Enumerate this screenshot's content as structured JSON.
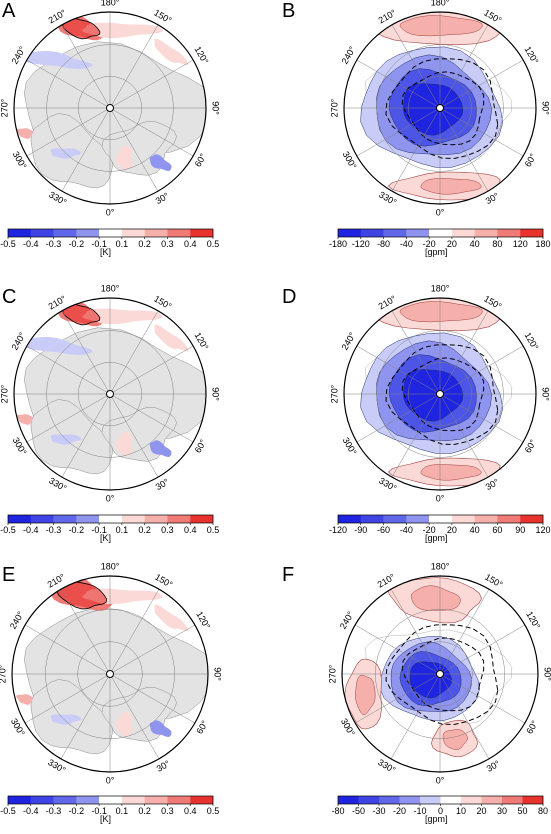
{
  "panels": [
    {
      "letter": "A",
      "type": "temperature",
      "unit": "[K]",
      "ticks": [
        "-0.5",
        "-0.4",
        "-0.3",
        "-0.2",
        "-0.1",
        "0.1",
        "0.2",
        "0.3",
        "0.4",
        "0.5"
      ]
    },
    {
      "letter": "B",
      "type": "geopotential",
      "unit": "[gpm]",
      "ticks": [
        "-180",
        "-120",
        "-80",
        "-40",
        "-20",
        "20",
        "40",
        "80",
        "120",
        "180"
      ]
    },
    {
      "letter": "C",
      "type": "temperature",
      "unit": "[K]",
      "ticks": [
        "-0.5",
        "-0.4",
        "-0.3",
        "-0.2",
        "-0.1",
        "0.1",
        "0.2",
        "0.3",
        "0.4",
        "0.5"
      ]
    },
    {
      "letter": "D",
      "type": "geopotential",
      "unit": "[gpm]",
      "ticks": [
        "-120",
        "-90",
        "-60",
        "-40",
        "-20",
        "20",
        "40",
        "60",
        "90",
        "120"
      ]
    },
    {
      "letter": "E",
      "type": "temperature",
      "unit": "[K]",
      "ticks": [
        "-0.5",
        "-0.4",
        "-0.3",
        "-0.2",
        "-0.1",
        "0.1",
        "0.2",
        "0.3",
        "0.4",
        "0.5"
      ]
    },
    {
      "letter": "F",
      "type": "geopotential",
      "unit": "[gpm]",
      "ticks": [
        "-80",
        "-50",
        "-30",
        "-20",
        "-10",
        "0",
        "10",
        "20",
        "30",
        "50",
        "80"
      ]
    }
  ],
  "longitude_labels": [
    "180°",
    "150°",
    "120°",
    "90°",
    "60°",
    "30°",
    "0°",
    "330°",
    "300°",
    "270°",
    "240°",
    "210°"
  ],
  "colors": {
    "ocean": "#ffffff",
    "land": "#e3e3e3",
    "coast": "#8c8c8c",
    "grid": "#808080",
    "red_strong": "#e8322e",
    "red_mid": "#f07a75",
    "red_light": "#f6b0ac",
    "red_pale": "#fad9d6",
    "blue_strong": "#1e24e0",
    "blue_mid": "#4d55e6",
    "blue_light": "#8f95ef",
    "blue_pale": "#c9ccf7"
  }
}
